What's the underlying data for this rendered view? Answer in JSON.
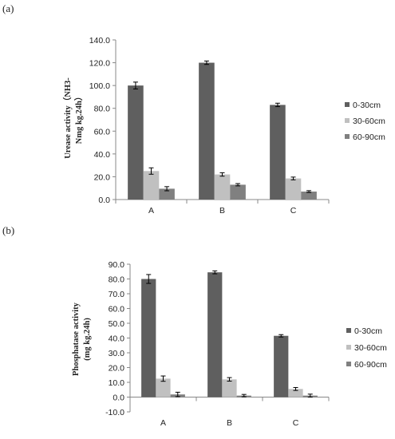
{
  "chart_data": [
    {
      "panel_label": "(a)",
      "type": "bar",
      "categories": [
        "A",
        "B",
        "C"
      ],
      "ylabel": [
        "Urease activity（NH3-",
        "Nmg kg.24h）"
      ],
      "ylim": [
        0,
        140
      ],
      "yticks": [
        "0.0",
        "20.0",
        "40.0",
        "60.0",
        "80.0",
        "100.0",
        "120.0",
        "140.0"
      ],
      "ytick_values": [
        0,
        20,
        40,
        60,
        80,
        100,
        120,
        140
      ],
      "grid": false,
      "legend": "right",
      "series": [
        {
          "name": "0-30cm",
          "color": "#5f5f5f",
          "values": [
            100.0,
            120.0,
            83.0
          ],
          "errors": [
            3.0,
            1.5,
            1.5
          ]
        },
        {
          "name": "30-60cm",
          "color": "#c0c0c0",
          "values": [
            25.0,
            22.0,
            18.5
          ],
          "errors": [
            2.8,
            1.5,
            1.2
          ]
        },
        {
          "name": "60-90cm",
          "color": "#808080",
          "values": [
            9.5,
            13.0,
            7.0
          ],
          "errors": [
            1.8,
            1.0,
            0.8
          ]
        }
      ]
    },
    {
      "panel_label": "(b)",
      "type": "bar",
      "categories": [
        "A",
        "B",
        "C"
      ],
      "ylabel": [
        "Phosphatase activity",
        "(mg kg.24h)"
      ],
      "ylim": [
        -10,
        90
      ],
      "yticks": [
        "-10.0",
        "0.0",
        "10.0",
        "20.0",
        "30.0",
        "40.0",
        "50.0",
        "60.0",
        "70.0",
        "80.0",
        "90.0"
      ],
      "ytick_values": [
        -10,
        0,
        10,
        20,
        30,
        40,
        50,
        60,
        70,
        80,
        90
      ],
      "grid": false,
      "legend": "right",
      "series": [
        {
          "name": "0-30cm",
          "color": "#5f5f5f",
          "values": [
            80.0,
            84.5,
            41.5
          ],
          "errors": [
            3.0,
            1.0,
            0.8
          ]
        },
        {
          "name": "30-60cm",
          "color": "#c0c0c0",
          "values": [
            12.5,
            12.0,
            5.5
          ],
          "errors": [
            1.8,
            1.2,
            1.0
          ]
        },
        {
          "name": "60-90cm",
          "color": "#808080",
          "values": [
            1.8,
            1.0,
            1.0
          ],
          "errors": [
            1.5,
            0.8,
            1.0
          ]
        }
      ]
    }
  ]
}
